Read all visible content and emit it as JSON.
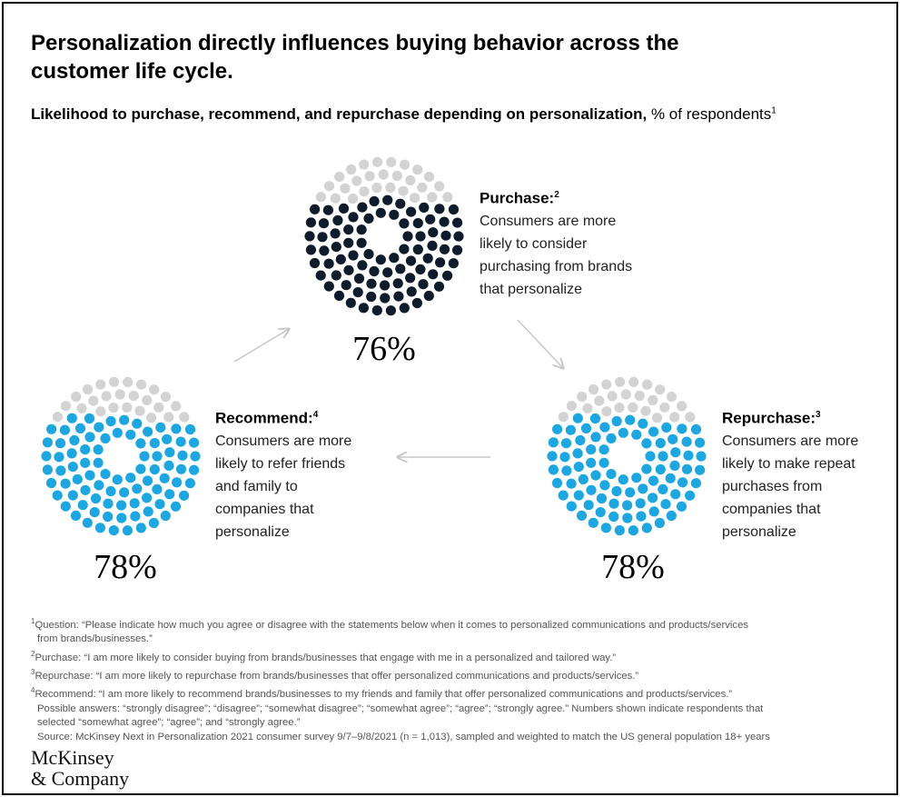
{
  "title": "Personalization directly influences buying behavior across the customer life cycle.",
  "subtitle_bold": "Likelihood to purchase, recommend, and repurchase depending on personalization,",
  "subtitle_unit": " % of respondents",
  "subtitle_sup": "1",
  "colors": {
    "purchase": "#0f1c2b",
    "recommend": "#1ea6e0",
    "repurchase": "#1ea6e0",
    "remainder": "#d3d3d3",
    "arrow": "#c8c8c8"
  },
  "chart_data": {
    "type": "dot-proportion",
    "items": [
      {
        "key": "purchase",
        "heading": "Purchase:",
        "sup": "2",
        "text": "Consumers are more likely to consider purchasing from brands that personalize",
        "value": 76,
        "label": "76%"
      },
      {
        "key": "repurchase",
        "heading": "Repurchase:",
        "sup": "3",
        "text": "Consumers are more likely to make repeat purchases from companies that personalize",
        "value": 78,
        "label": "78%"
      },
      {
        "key": "recommend",
        "heading": "Recommend:",
        "sup": "4",
        "text": "Consumers are more likely to refer friends and family to companies that personalize",
        "value": 78,
        "label": "78%"
      }
    ],
    "flow": [
      "purchase",
      "repurchase",
      "recommend",
      "purchase"
    ]
  },
  "notes": [
    {
      "sup": "1",
      "text": "Question: “Please indicate how much you agree or disagree with the statements below when it comes to personalized communications and products/services"
    },
    {
      "sup": "",
      "text": "from brands/businesses.”"
    },
    {
      "sup": "2",
      "text": "Purchase: “I am more likely to consider buying from brands/businesses that engage with me in a personalized and tailored way.”"
    },
    {
      "sup": "3",
      "text": "Repurchase: “I am more likely to repurchase from brands/businesses that offer personalized communications and products/services.”"
    },
    {
      "sup": "4",
      "text": "Recommend: “I am more likely to recommend brands/businesses to my friends and family that offer personalized communications and products/services.”"
    },
    {
      "sup": "",
      "text": "Possible answers: “strongly disagree”; “disagree”; “somewhat disagree”; “somewhat agree”; “agree”; “strongly agree.” Numbers shown indicate respondents that"
    },
    {
      "sup": "",
      "text": "selected “somewhat agree”; “agree”; and “strongly agree.”"
    },
    {
      "sup": "",
      "text": "Source: McKinsey Next in Personalization 2021 consumer survey 9/7–9/8/2021 (n = 1,013), sampled and weighted to match the US general population 18+ years"
    }
  ],
  "logo": [
    "McKinsey",
    "& Company"
  ]
}
